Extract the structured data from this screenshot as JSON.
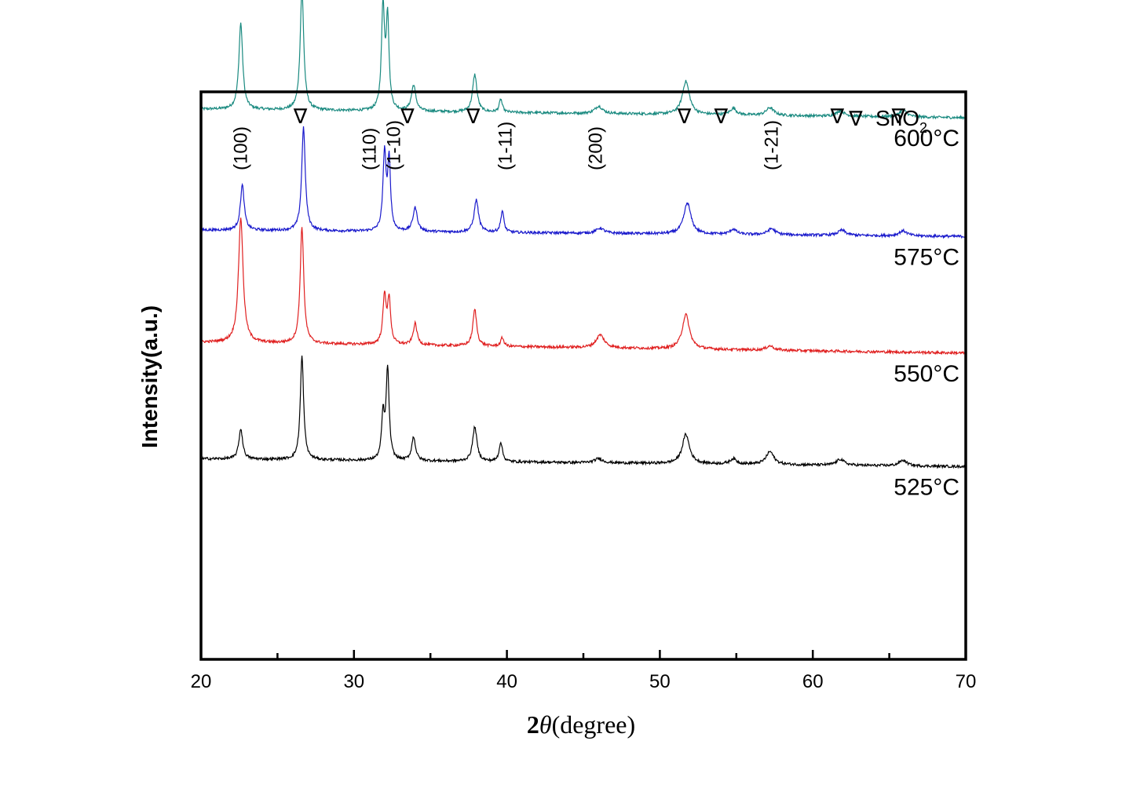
{
  "chart_data": {
    "type": "line",
    "title": "",
    "xlabel": "2θ(degree)",
    "xlabel_prefix": "2",
    "xlabel_theta": "θ",
    "xlabel_suffix": "(degree)",
    "ylabel": "Intensity(a.u.)",
    "xlim": [
      20,
      70
    ],
    "x_ticks": [
      20,
      30,
      40,
      50,
      60,
      70
    ],
    "legend": {
      "symbol": "∇",
      "label": "SnO",
      "label_sub": "2",
      "placement": "top-right"
    },
    "series": [
      {
        "name": "600°C",
        "color": "#1a8a80",
        "offset": 0.62,
        "baseline_start": 0.0,
        "baseline_end": -0.02,
        "peaks": [
          [
            22.6,
            0.2,
            0.15
          ],
          [
            26.6,
            0.28,
            0.14
          ],
          [
            31.9,
            0.24,
            0.12
          ],
          [
            32.2,
            0.21,
            0.11
          ],
          [
            33.9,
            0.06,
            0.17
          ],
          [
            37.9,
            0.087,
            0.17
          ],
          [
            39.6,
            0.03,
            0.12
          ],
          [
            46.0,
            0.017,
            0.3
          ],
          [
            51.7,
            0.077,
            0.28
          ],
          [
            54.8,
            0.015,
            0.25
          ],
          [
            57.2,
            0.018,
            0.3
          ],
          [
            61.8,
            0.013,
            0.3
          ],
          [
            65.9,
            0.016,
            0.3
          ]
        ]
      },
      {
        "name": "575°C",
        "color": "#1a1acc",
        "offset": 0.34,
        "baseline_start": 0.0,
        "baseline_end": -0.015,
        "peaks": [
          [
            22.7,
            0.105,
            0.15
          ],
          [
            26.7,
            0.24,
            0.14
          ],
          [
            32.0,
            0.18,
            0.12
          ],
          [
            32.3,
            0.16,
            0.11
          ],
          [
            34.0,
            0.055,
            0.17
          ],
          [
            38.0,
            0.075,
            0.17
          ],
          [
            39.7,
            0.05,
            0.12
          ],
          [
            46.1,
            0.012,
            0.3
          ],
          [
            51.8,
            0.072,
            0.28
          ],
          [
            54.8,
            0.012,
            0.25
          ],
          [
            57.3,
            0.014,
            0.3
          ],
          [
            61.9,
            0.012,
            0.3
          ],
          [
            65.9,
            0.012,
            0.3
          ]
        ]
      },
      {
        "name": "550°C",
        "color": "#e02020",
        "offset": 0.08,
        "baseline_start": 0.0,
        "baseline_end": -0.025,
        "peaks": [
          [
            22.6,
            0.29,
            0.18
          ],
          [
            26.6,
            0.27,
            0.14
          ],
          [
            32.0,
            0.11,
            0.13
          ],
          [
            32.3,
            0.1,
            0.12
          ],
          [
            34.0,
            0.05,
            0.15
          ],
          [
            37.9,
            0.085,
            0.15
          ],
          [
            39.7,
            0.02,
            0.12
          ],
          [
            46.1,
            0.03,
            0.32
          ],
          [
            51.7,
            0.08,
            0.28
          ],
          [
            57.2,
            0.01,
            0.3
          ]
        ]
      },
      {
        "name": "525°C",
        "color": "#000000",
        "offset": -0.19,
        "baseline_start": 0.0,
        "baseline_end": -0.018,
        "peaks": [
          [
            22.6,
            0.07,
            0.15
          ],
          [
            26.6,
            0.24,
            0.13
          ],
          [
            31.9,
            0.1,
            0.11
          ],
          [
            32.2,
            0.21,
            0.12
          ],
          [
            33.9,
            0.055,
            0.15
          ],
          [
            37.9,
            0.08,
            0.17
          ],
          [
            39.6,
            0.045,
            0.13
          ],
          [
            46.0,
            0.01,
            0.3
          ],
          [
            51.7,
            0.068,
            0.28
          ],
          [
            54.8,
            0.012,
            0.25
          ],
          [
            57.2,
            0.03,
            0.3
          ],
          [
            61.8,
            0.014,
            0.3
          ],
          [
            65.9,
            0.013,
            0.3
          ]
        ]
      }
    ],
    "peak_annotations": [
      {
        "label": "(100)",
        "x": 22.6,
        "kind": "miller"
      },
      {
        "label": "∇",
        "x": 26.5,
        "kind": "marker"
      },
      {
        "label": "(110)",
        "x": 31.0,
        "kind": "miller"
      },
      {
        "label": "(1-10)",
        "x": 32.6,
        "kind": "miller"
      },
      {
        "label": "∇",
        "x": 33.5,
        "kind": "marker"
      },
      {
        "label": "∇",
        "x": 37.8,
        "kind": "marker"
      },
      {
        "label": "(1-11)",
        "x": 39.9,
        "kind": "miller"
      },
      {
        "label": "(200)",
        "x": 45.8,
        "kind": "miller"
      },
      {
        "label": "∇",
        "x": 51.6,
        "kind": "marker"
      },
      {
        "label": "∇",
        "x": 54.0,
        "kind": "marker"
      },
      {
        "label": "(1-21)",
        "x": 57.3,
        "kind": "miller"
      },
      {
        "label": "∇",
        "x": 61.6,
        "kind": "marker"
      },
      {
        "label": "∇",
        "x": 65.6,
        "kind": "marker"
      }
    ]
  }
}
